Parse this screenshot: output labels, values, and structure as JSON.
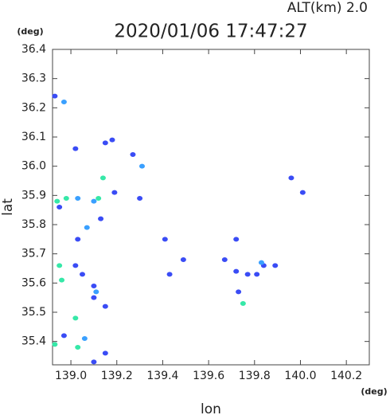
{
  "chart_data": {
    "type": "scatter",
    "title": "2020/01/06 17:47:27",
    "annotation": "ALT(km) 2.0",
    "x_unit": "(deg)",
    "y_unit": "(deg)",
    "xlabel": "lon",
    "ylabel": "lat",
    "xlim": [
      138.92,
      140.3
    ],
    "ylim": [
      35.32,
      36.4
    ],
    "xticks": [
      {
        "value": 139,
        "label": "139.0"
      },
      139.2,
      139.4,
      139.6,
      139.8,
      {
        "value": 140,
        "label": "140.0"
      },
      140.2
    ],
    "yticks": [
      {
        "value": 35.4,
        "label": "35.4"
      },
      35.5,
      35.6,
      35.7,
      35.8,
      35.9,
      {
        "value": 36,
        "label": "36.0"
      },
      36.1,
      36.2,
      36.3,
      36.4
    ],
    "series": [
      {
        "color": "#3a4cf5",
        "x": [
          138.93,
          138.95,
          139.02,
          139.18,
          139.15,
          139.27,
          139.19,
          139.3,
          139.13,
          139.03,
          139.41,
          139.43,
          139.49,
          139.05,
          139.1,
          139.1,
          138.97,
          139.15,
          139.15,
          139.1,
          139.96,
          140.01,
          139.67,
          139.72,
          139.72,
          139.77,
          139.81,
          139.84,
          139.89,
          139.73,
          139.02
        ],
        "values": [
          36.24,
          35.86,
          36.06,
          36.09,
          36.08,
          36.04,
          35.91,
          35.89,
          35.82,
          35.75,
          35.75,
          35.63,
          35.68,
          35.63,
          35.59,
          35.55,
          35.42,
          35.52,
          35.36,
          35.33,
          35.96,
          35.91,
          35.68,
          35.75,
          35.64,
          35.63,
          35.63,
          35.66,
          35.66,
          35.57,
          35.66
        ]
      },
      {
        "color": "#3aa0ff",
        "x": [
          138.97,
          139.03,
          139.07,
          139.1,
          139.06,
          139.11,
          139.31,
          139.83
        ],
        "values": [
          36.22,
          35.89,
          35.79,
          35.88,
          35.41,
          35.57,
          36.0,
          35.67
        ]
      },
      {
        "color": "#36e8a8",
        "x": [
          138.94,
          138.98,
          138.95,
          138.96,
          139.02,
          138.93,
          139.03,
          139.12,
          139.14,
          139.75
        ],
        "values": [
          35.88,
          35.89,
          35.66,
          35.61,
          35.48,
          35.39,
          35.38,
          35.89,
          35.96,
          35.53
        ]
      }
    ]
  }
}
